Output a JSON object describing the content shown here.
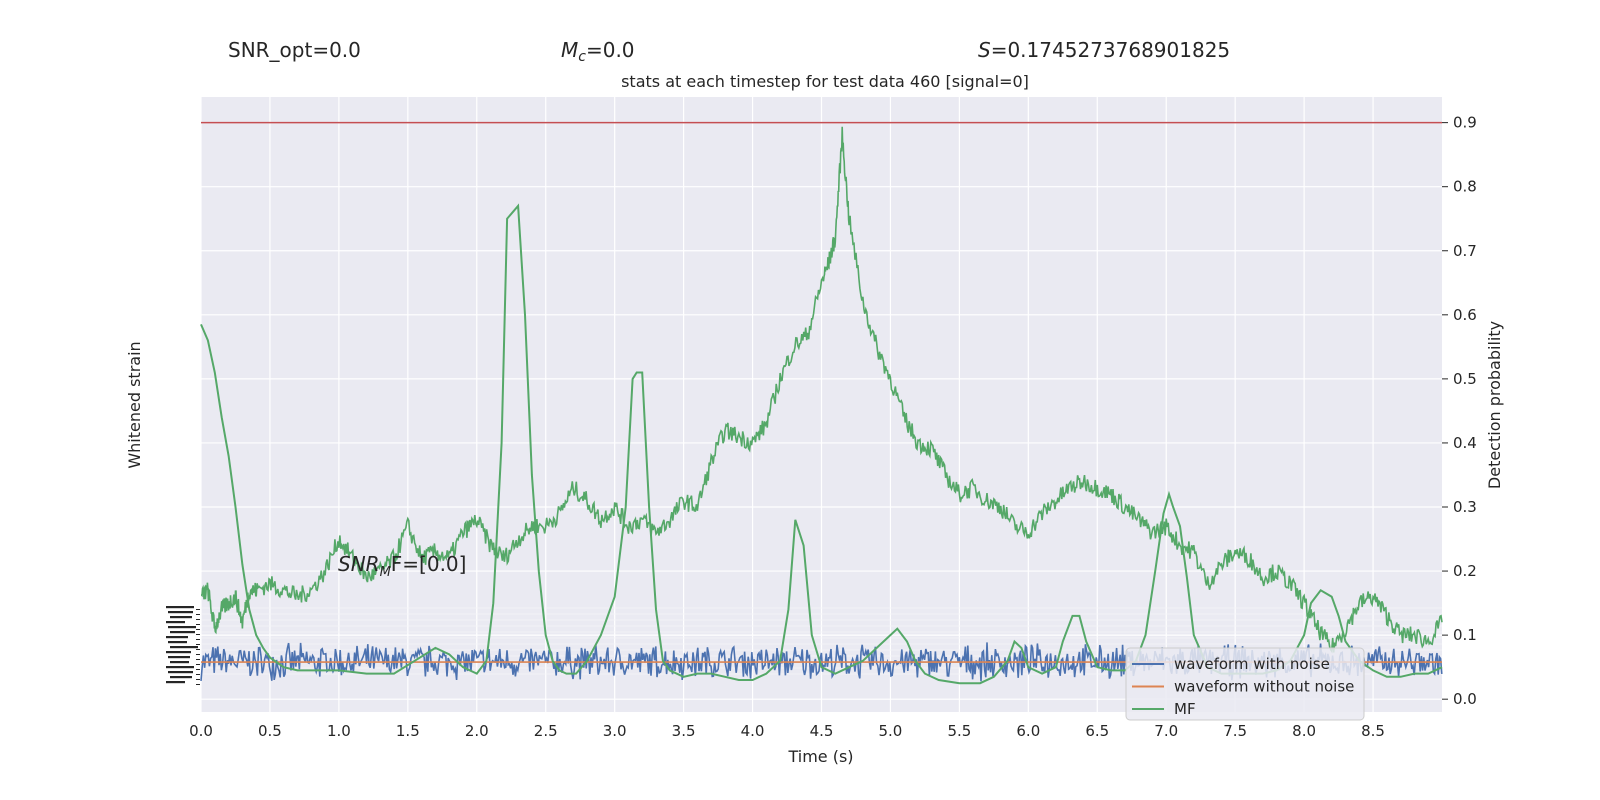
{
  "header": {
    "snr_opt": "SNR_opt=0.0",
    "mc_symbol": "M",
    "mc_sub": "c",
    "mc_value": "=0.0",
    "s_symbol": "S",
    "s_value": "=0.1745273768901825",
    "subtitle": "stats at each timestep for test data 460 [signal=0]"
  },
  "annotation": {
    "text": "SNR_M F=[0.0]",
    "base": "SNR",
    "sub": "M",
    "tail": "F=[0.0]"
  },
  "colors": {
    "background": "#eaeaf2",
    "grid": "#ffffff",
    "noise": "#4c72b0",
    "signal": "#dd8452",
    "mf": "#55a868",
    "threshold": "#c44e52"
  },
  "chart_data": {
    "type": "line",
    "xlabel": "Time (s)",
    "ylabel_left": "Whitened strain",
    "ylabel_right": "Detection probability",
    "xlim": [
      0.0,
      9.0
    ],
    "ylim_right": [
      -0.02,
      0.94
    ],
    "x_ticks": [
      "0.0",
      "0.5",
      "1.0",
      "1.5",
      "2.0",
      "2.5",
      "3.0",
      "3.5",
      "4.0",
      "4.5",
      "5.0",
      "5.5",
      "6.0",
      "6.5",
      "7.0",
      "7.5",
      "8.0",
      "8.5"
    ],
    "y_ticks_right": [
      "0.0",
      "0.1",
      "0.2",
      "0.3",
      "0.4",
      "0.5",
      "0.6",
      "0.7",
      "0.8",
      "0.9"
    ],
    "threshold": 0.9,
    "legend": {
      "placement": "lower-right",
      "entries": [
        "waveform with noise",
        "waveform without noise",
        "MF"
      ]
    },
    "series": [
      {
        "name": "MF",
        "x": [
          0.0,
          0.05,
          0.1,
          0.15,
          0.2,
          0.25,
          0.3,
          0.35,
          0.4,
          0.45,
          0.5,
          0.6,
          0.7,
          0.8,
          0.9,
          1.0,
          1.2,
          1.4,
          1.55,
          1.7,
          1.8,
          1.9,
          2.0,
          2.07,
          2.12,
          2.18,
          2.22,
          2.26,
          2.3,
          2.35,
          2.4,
          2.45,
          2.5,
          2.55,
          2.6,
          2.65,
          2.72,
          2.8,
          2.9,
          3.0,
          3.08,
          3.13,
          3.16,
          3.2,
          3.25,
          3.3,
          3.35,
          3.4,
          3.5,
          3.6,
          3.7,
          3.8,
          3.9,
          4.0,
          4.1,
          4.2,
          4.26,
          4.31,
          4.37,
          4.43,
          4.5,
          4.6,
          4.7,
          4.8,
          4.9,
          5.0,
          5.05,
          5.12,
          5.18,
          5.25,
          5.35,
          5.5,
          5.65,
          5.75,
          5.85,
          5.9,
          5.95,
          6.0,
          6.1,
          6.2,
          6.25,
          6.32,
          6.37,
          6.42,
          6.5,
          6.6,
          6.7,
          6.78,
          6.85,
          6.92,
          6.98,
          7.02,
          7.05,
          7.1,
          7.15,
          7.2,
          7.3,
          7.4,
          7.5,
          7.6,
          7.7,
          7.8,
          7.9,
          8.0,
          8.05,
          8.12,
          8.2,
          8.25,
          8.3,
          8.4,
          8.5,
          8.6,
          8.7,
          8.8,
          8.9,
          9.0
        ],
        "y": [
          0.585,
          0.56,
          0.51,
          0.44,
          0.38,
          0.3,
          0.21,
          0.14,
          0.1,
          0.08,
          0.065,
          0.05,
          0.045,
          0.045,
          0.045,
          0.045,
          0.04,
          0.04,
          0.06,
          0.08,
          0.07,
          0.05,
          0.04,
          0.06,
          0.15,
          0.4,
          0.75,
          0.76,
          0.77,
          0.6,
          0.35,
          0.2,
          0.1,
          0.06,
          0.045,
          0.04,
          0.04,
          0.06,
          0.1,
          0.16,
          0.3,
          0.5,
          0.51,
          0.51,
          0.3,
          0.14,
          0.06,
          0.045,
          0.035,
          0.04,
          0.04,
          0.035,
          0.03,
          0.03,
          0.04,
          0.06,
          0.14,
          0.28,
          0.24,
          0.1,
          0.05,
          0.04,
          0.05,
          0.06,
          0.08,
          0.1,
          0.11,
          0.09,
          0.06,
          0.04,
          0.03,
          0.025,
          0.025,
          0.035,
          0.06,
          0.09,
          0.08,
          0.05,
          0.04,
          0.05,
          0.09,
          0.13,
          0.13,
          0.09,
          0.05,
          0.045,
          0.045,
          0.06,
          0.1,
          0.2,
          0.29,
          0.32,
          0.3,
          0.27,
          0.19,
          0.1,
          0.05,
          0.04,
          0.04,
          0.04,
          0.04,
          0.045,
          0.06,
          0.1,
          0.15,
          0.17,
          0.16,
          0.13,
          0.09,
          0.06,
          0.045,
          0.035,
          0.035,
          0.04,
          0.04,
          0.05
        ],
        "style": "smooth"
      },
      {
        "name": "detection_probability",
        "x": [
          0.0,
          0.05,
          0.1,
          0.15,
          0.2,
          0.25,
          0.3,
          0.35,
          0.4,
          0.5,
          0.6,
          0.7,
          0.8,
          0.9,
          1.0,
          1.1,
          1.2,
          1.3,
          1.4,
          1.5,
          1.6,
          1.7,
          1.8,
          1.9,
          2.0,
          2.1,
          2.2,
          2.3,
          2.4,
          2.5,
          2.6,
          2.7,
          2.8,
          2.9,
          3.0,
          3.1,
          3.2,
          3.3,
          3.4,
          3.5,
          3.6,
          3.7,
          3.8,
          3.9,
          4.0,
          4.1,
          4.2,
          4.3,
          4.4,
          4.5,
          4.55,
          4.6,
          4.65,
          4.7,
          4.8,
          4.9,
          5.0,
          5.1,
          5.2,
          5.3,
          5.4,
          5.5,
          5.6,
          5.7,
          5.8,
          5.9,
          6.0,
          6.1,
          6.2,
          6.3,
          6.4,
          6.5,
          6.6,
          6.7,
          6.8,
          6.9,
          7.0,
          7.1,
          7.2,
          7.3,
          7.4,
          7.5,
          7.6,
          7.7,
          7.8,
          7.9,
          8.0,
          8.1,
          8.2,
          8.3,
          8.4,
          8.5,
          8.6,
          8.7,
          8.8,
          8.9,
          9.0
        ],
        "y": [
          0.16,
          0.17,
          0.11,
          0.14,
          0.15,
          0.16,
          0.12,
          0.17,
          0.17,
          0.18,
          0.17,
          0.16,
          0.17,
          0.2,
          0.25,
          0.22,
          0.19,
          0.2,
          0.22,
          0.27,
          0.22,
          0.23,
          0.22,
          0.26,
          0.28,
          0.24,
          0.22,
          0.25,
          0.27,
          0.27,
          0.29,
          0.33,
          0.31,
          0.28,
          0.3,
          0.27,
          0.28,
          0.26,
          0.28,
          0.31,
          0.3,
          0.37,
          0.42,
          0.41,
          0.4,
          0.43,
          0.5,
          0.55,
          0.57,
          0.65,
          0.68,
          0.72,
          0.88,
          0.75,
          0.62,
          0.55,
          0.5,
          0.44,
          0.4,
          0.39,
          0.35,
          0.32,
          0.33,
          0.31,
          0.3,
          0.27,
          0.26,
          0.29,
          0.31,
          0.33,
          0.34,
          0.33,
          0.32,
          0.3,
          0.28,
          0.26,
          0.27,
          0.24,
          0.23,
          0.18,
          0.21,
          0.23,
          0.22,
          0.19,
          0.2,
          0.18,
          0.15,
          0.11,
          0.08,
          0.11,
          0.15,
          0.16,
          0.13,
          0.1,
          0.1,
          0.09,
          0.12
        ],
        "style": "jagged",
        "color": "#55a868"
      },
      {
        "name": "waveform with noise",
        "level": 0.058,
        "amplitude": 0.022
      },
      {
        "name": "waveform without noise",
        "level": 0.058
      }
    ]
  }
}
